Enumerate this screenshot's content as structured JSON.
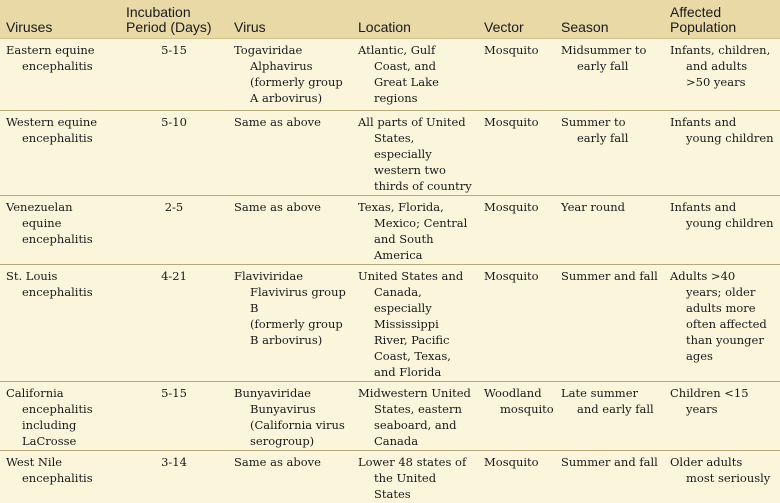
{
  "table": {
    "headers": [
      {
        "label": "Viruses"
      },
      {
        "label": "Incubation Period (Days)"
      },
      {
        "label": "Virus"
      },
      {
        "label": "Location"
      },
      {
        "label": "Vector"
      },
      {
        "label": "Season"
      },
      {
        "label": "Affected Population"
      }
    ],
    "rows": [
      {
        "virus_name": "Eastern equine encephalitis",
        "incubation": "5-15",
        "virus": [
          "Togaviridae",
          "Alphavirus",
          "(formerly group",
          "A arbovirus)"
        ],
        "location": "Atlantic, Gulf Coast, and Great Lake regions",
        "vector": "Mosquito",
        "season": "Midsummer to early fall",
        "population": "Infants, children, and adults >50 years"
      },
      {
        "virus_name": "Western equine encephalitis",
        "incubation": "5-10",
        "virus": [
          "Same as above"
        ],
        "location": "All parts of United States, especially western two thirds of country",
        "vector": "Mosquito",
        "season": "Summer to early fall",
        "population": "Infants and young children"
      },
      {
        "virus_name": "Venezuelan equine encephalitis",
        "incubation": "2-5",
        "virus": [
          "Same as above"
        ],
        "location": "Texas, Florida, Mexico; Central and South America",
        "vector": "Mosquito",
        "season": "Year round",
        "population": "Infants and young children"
      },
      {
        "virus_name": "St. Louis encephalitis",
        "incubation": "4-21",
        "virus": [
          "Flaviviridae",
          "Flavivirus group B",
          "(formerly group",
          "B arbovirus)"
        ],
        "location": "United States and Canada, especially Mississippi River, Pacific Coast, Texas, and Florida",
        "vector": "Mosquito",
        "season": "Summer and fall",
        "population": "Adults >40 years; older adults more often affected than younger ages"
      },
      {
        "virus_name": "California encephalitis including LaCrosse",
        "incubation": "5-15",
        "virus": [
          "Bunyaviridae",
          "Bunyavirus",
          "(California virus",
          "serogroup)"
        ],
        "location": "Midwestern United States, eastern seaboard, and Canada",
        "vector": "Woodland mosquito",
        "season": "Late summer and early fall",
        "population": "Children <15 years"
      },
      {
        "virus_name": "West Nile encephalitis",
        "incubation": "3-14",
        "virus": [
          "Same as above"
        ],
        "location": "Lower 48 states of the United States",
        "vector": "Mosquito",
        "season": "Summer and fall",
        "population": "Older adults most seriously"
      }
    ]
  }
}
